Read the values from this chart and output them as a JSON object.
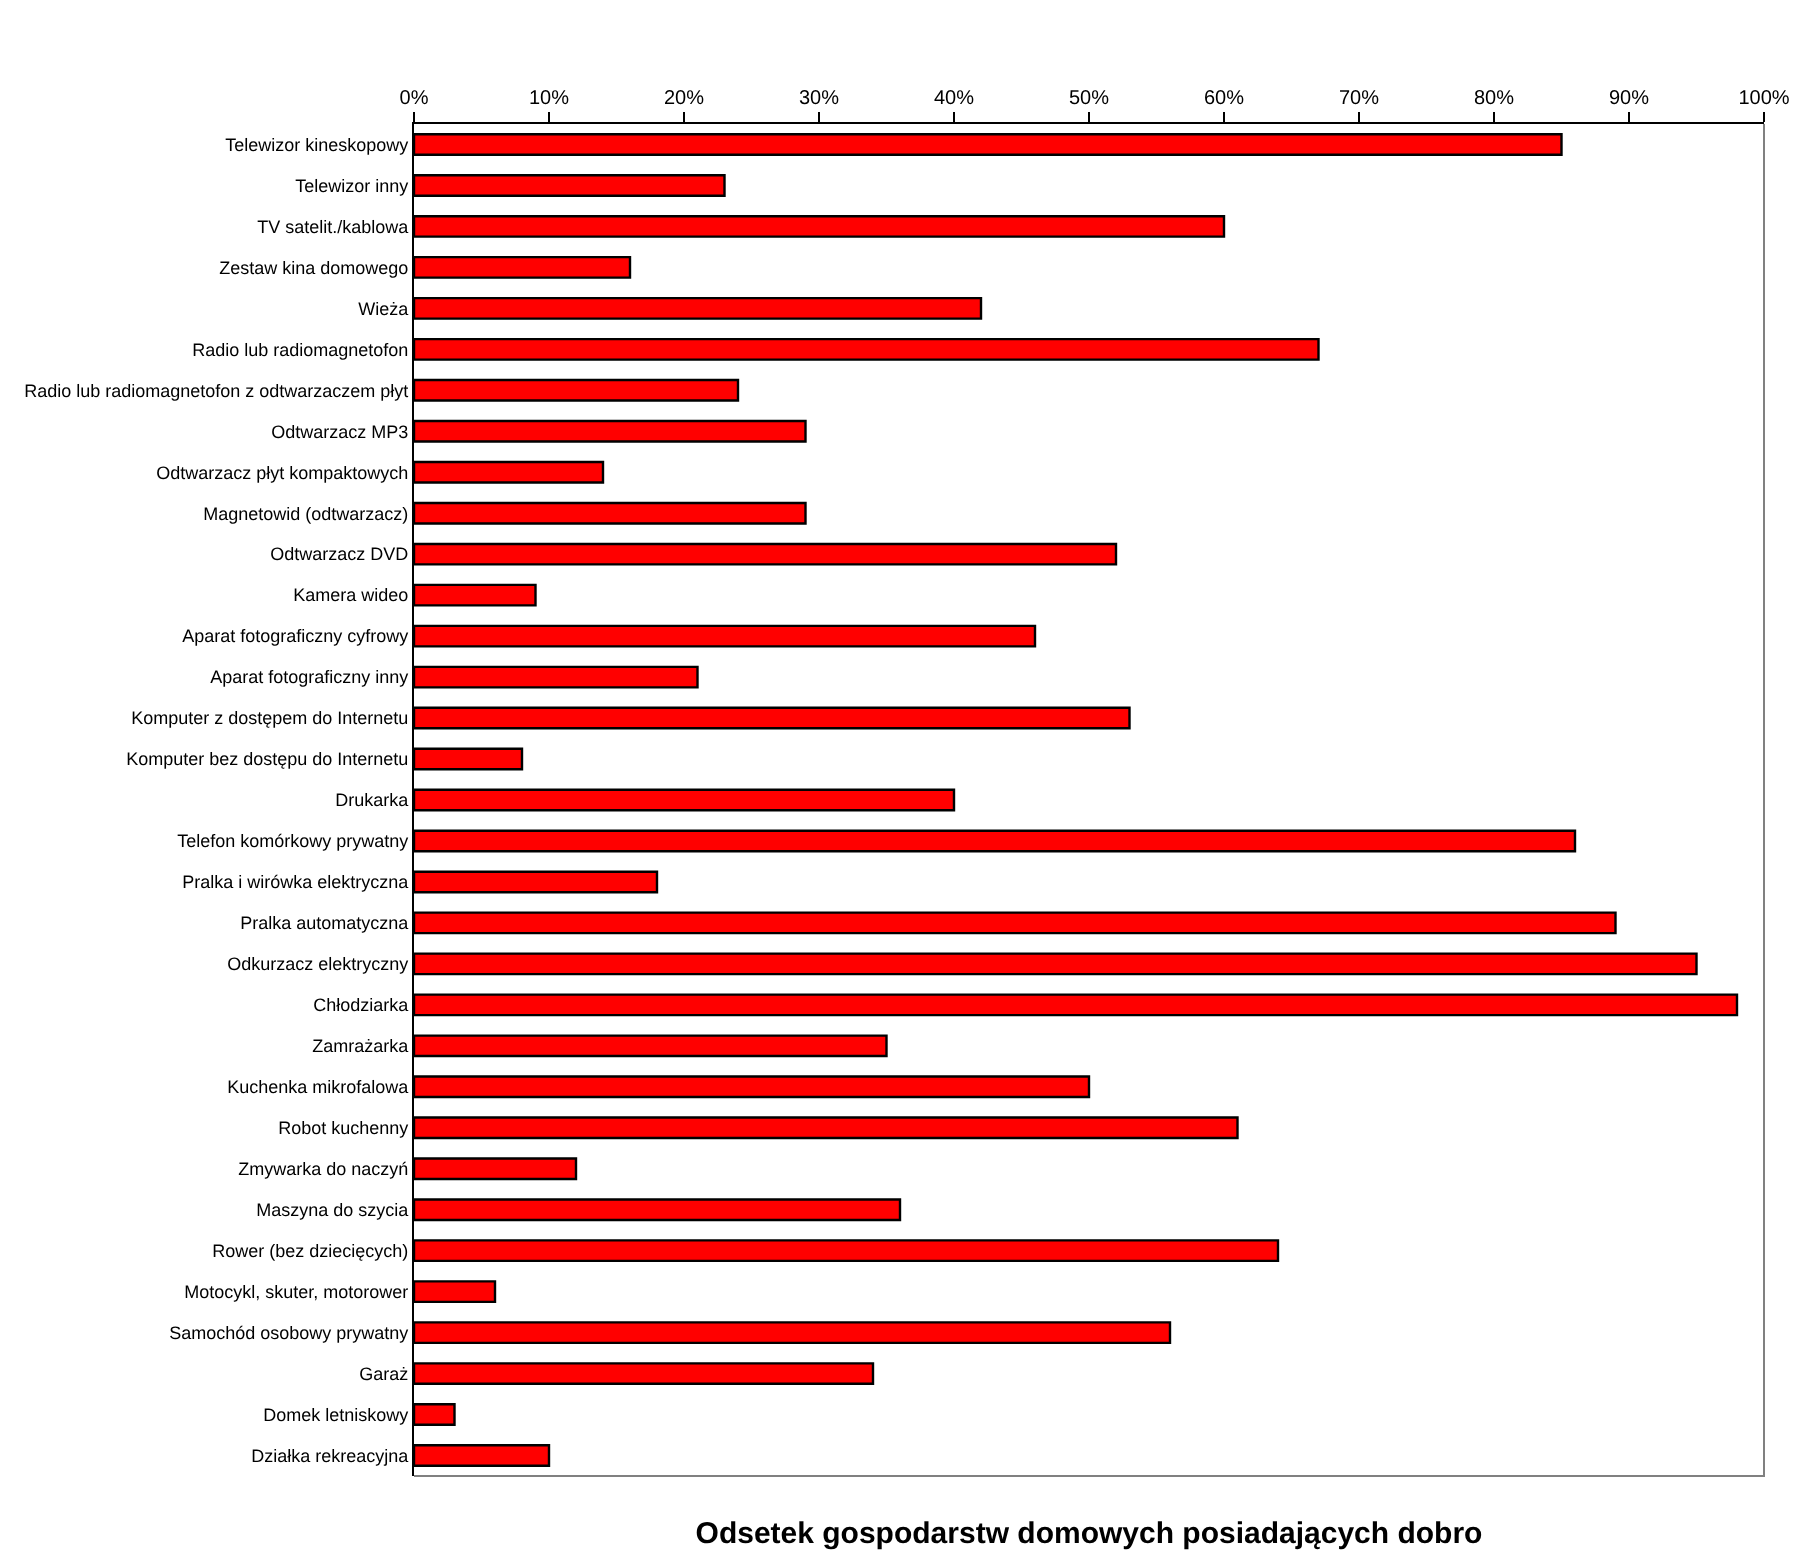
{
  "chart_data": {
    "type": "bar",
    "orientation": "horizontal",
    "title": "Odsetek gospodarstw domowych posiadających dobro",
    "categories": [
      "Telewizor kineskopowy",
      "Telewizor inny",
      "TV satelit./kablowa",
      "Zestaw kina domowego",
      "Wieża",
      "Radio lub radiomagnetofon",
      "Radio lub radiomagnetofon z odtwarzaczem płyt",
      "Odtwarzacz MP3",
      "Odtwarzacz płyt kompaktowych",
      "Magnetowid (odtwarzacz)",
      "Odtwarzacz DVD",
      "Kamera wideo",
      "Aparat fotograficzny cyfrowy",
      "Aparat fotograficzny inny",
      "Komputer z dostępem do Internetu",
      "Komputer bez dostępu do Internetu",
      "Drukarka",
      "Telefon komórkowy prywatny",
      "Pralka i wirówka elektryczna",
      "Pralka automatyczna",
      "Odkurzacz elektryczny",
      "Chłodziarka",
      "Zamrażarka",
      "Kuchenka mikrofalowa",
      "Robot kuchenny",
      "Zmywarka do naczyń",
      "Maszyna do szycia",
      "Rower (bez dziecięcych)",
      "Motocykl, skuter, motorower",
      "Samochód osobowy prywatny",
      "Garaż",
      "Domek letniskowy",
      "Działka rekreacyjna"
    ],
    "values": [
      85,
      23,
      60,
      16,
      42,
      67,
      24,
      29,
      14,
      29,
      52,
      9,
      46,
      21,
      53,
      8,
      40,
      86,
      18,
      89,
      95,
      98,
      35,
      50,
      61,
      12,
      36,
      64,
      6,
      56,
      34,
      3,
      10
    ],
    "color": "#ff0000",
    "xlim": [
      0,
      100
    ],
    "xticks": [
      {
        "value": 0,
        "label": "0%"
      },
      {
        "value": 10,
        "label": "10%"
      },
      {
        "value": 20,
        "label": "20%"
      },
      {
        "value": 30,
        "label": "30%"
      },
      {
        "value": 40,
        "label": "40%"
      },
      {
        "value": 50,
        "label": "50%"
      },
      {
        "value": 60,
        "label": "60%"
      },
      {
        "value": 70,
        "label": "70%"
      },
      {
        "value": 80,
        "label": "80%"
      },
      {
        "value": 90,
        "label": "90%"
      },
      {
        "value": 100,
        "label": "100%"
      }
    ]
  }
}
